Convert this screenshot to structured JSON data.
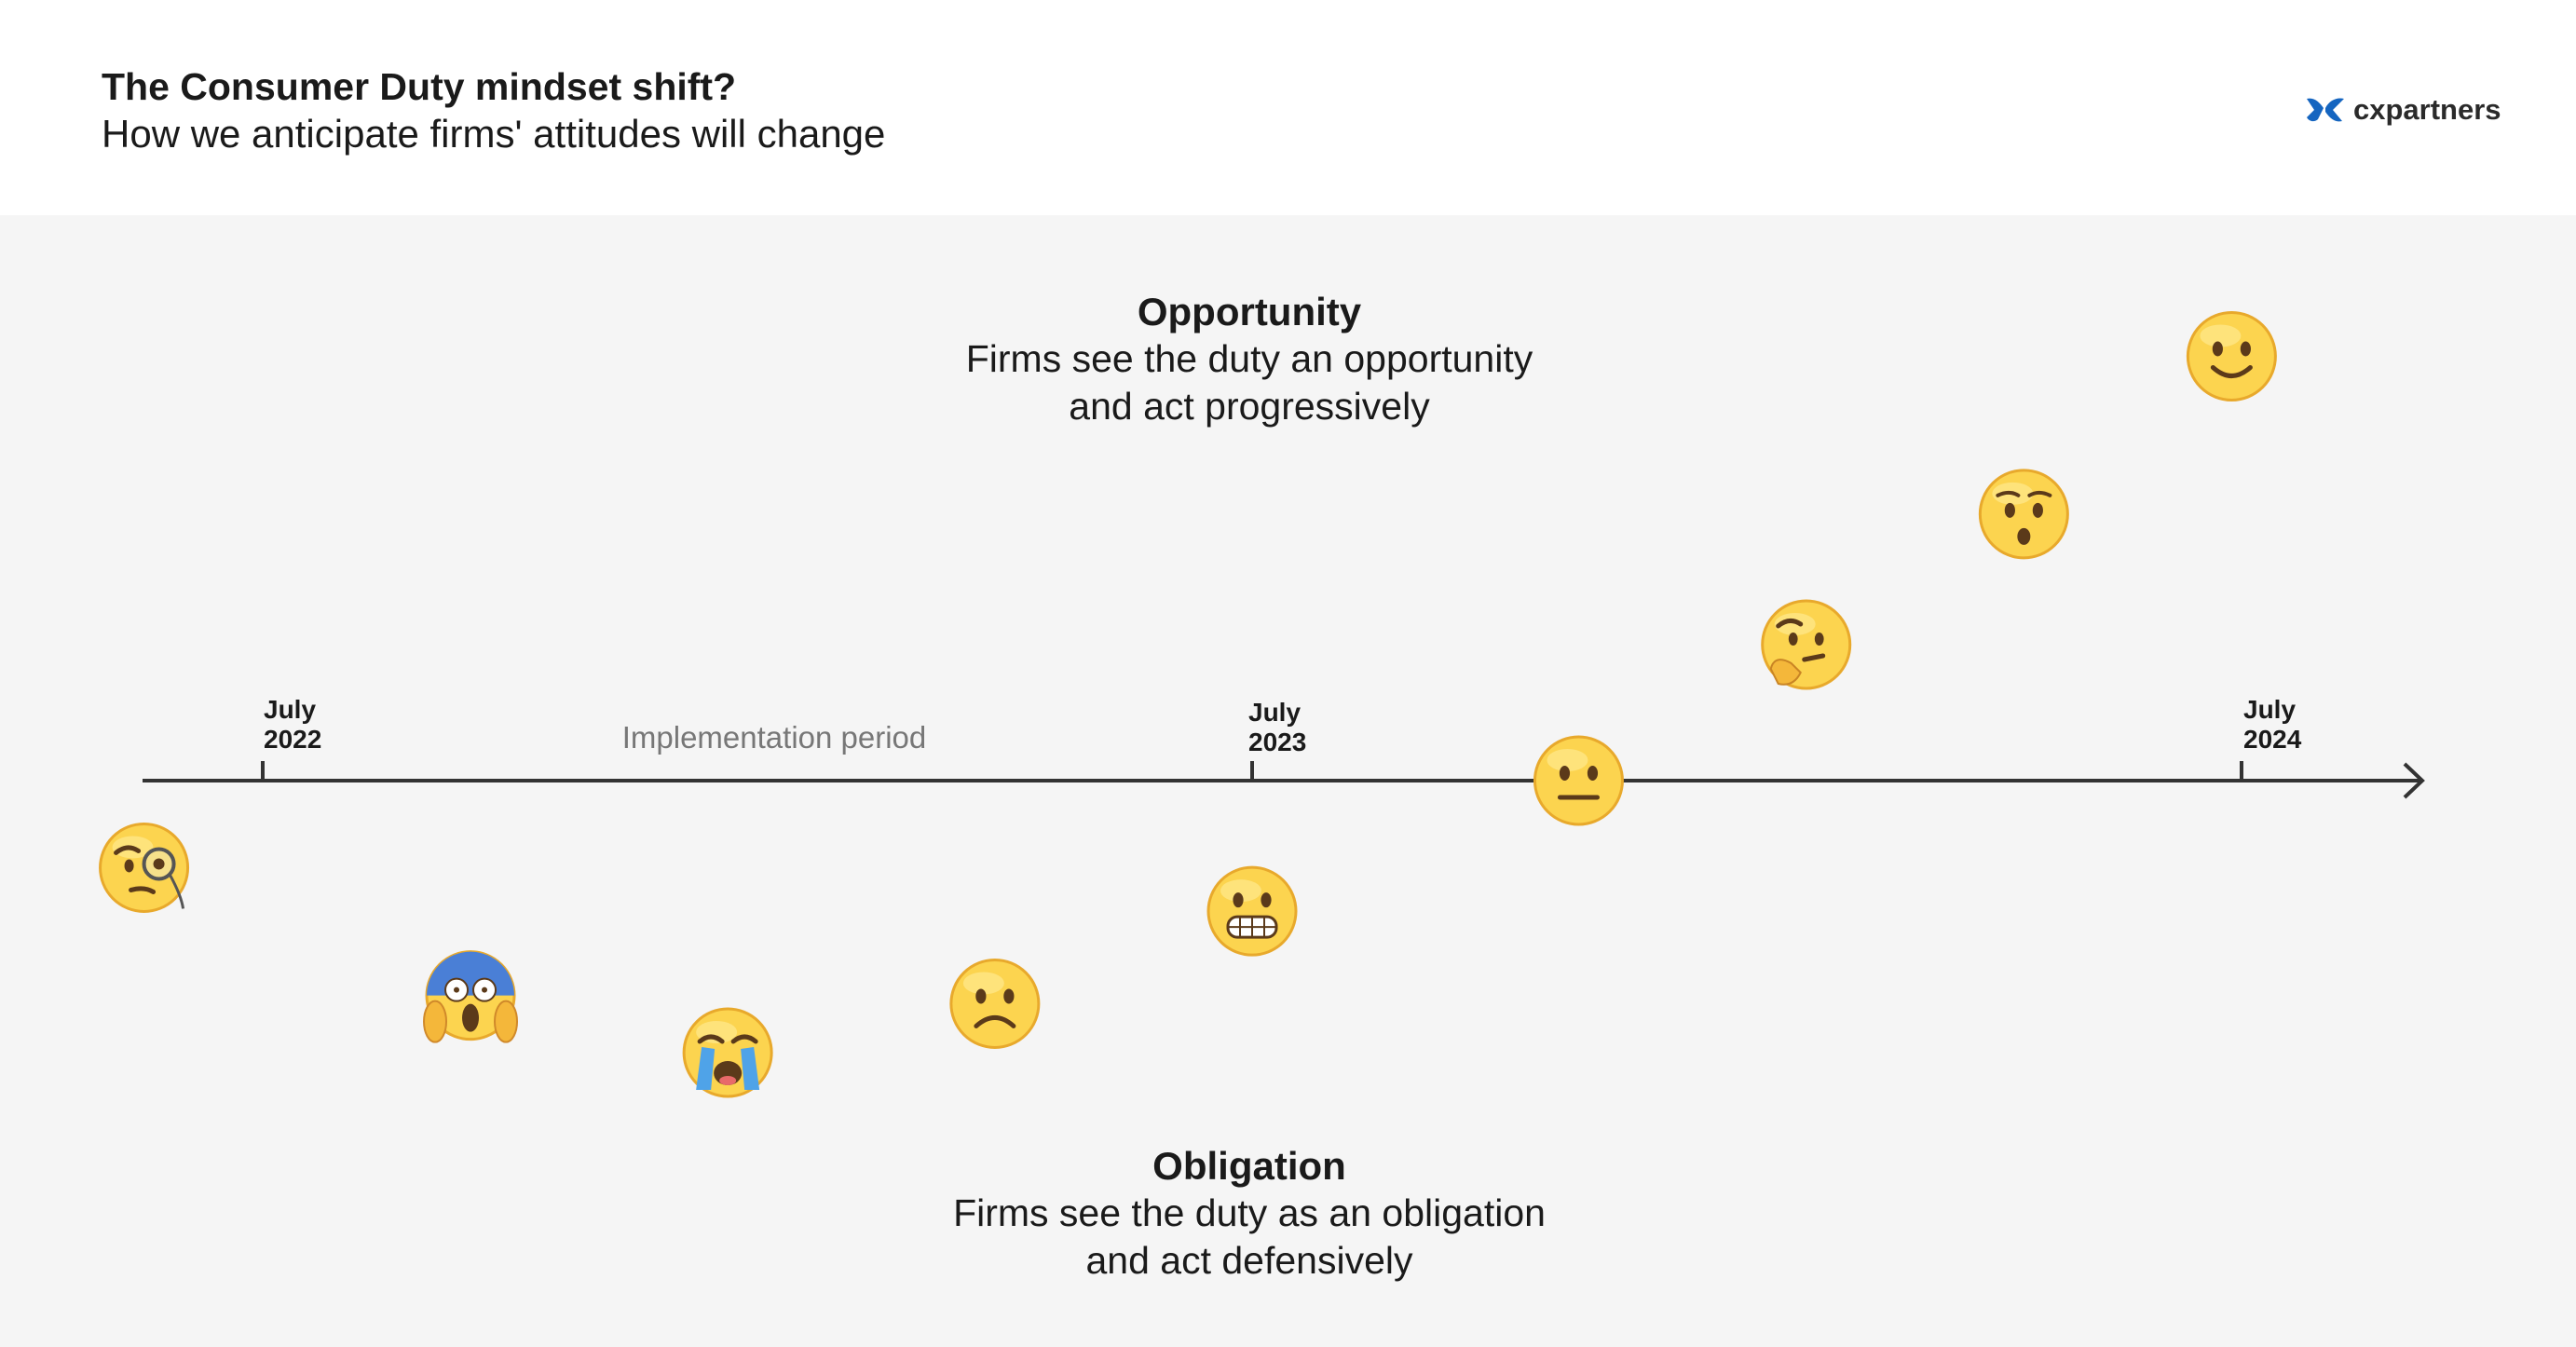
{
  "header": {
    "title": "The Consumer Duty mindset shift?",
    "subtitle": "How we anticipate firms' attitudes will change"
  },
  "logo": {
    "text": "cxpartners",
    "icon": "cx-logo-icon",
    "color": "#1565c0"
  },
  "opportunity": {
    "title": "Opportunity",
    "lines": [
      "Firms see the duty an opportunity",
      "and act progressively"
    ]
  },
  "obligation": {
    "title": "Obligation",
    "lines": [
      "Firms see the duty as an obligation",
      "and act defensively"
    ]
  },
  "timeline": {
    "period_label": "Implementation period",
    "milestones": [
      {
        "line1": "July",
        "line2": "2022"
      },
      {
        "line1": "July",
        "line2": "2023"
      },
      {
        "line1": "July",
        "line2": "2024"
      }
    ],
    "axis_color": "#333333"
  },
  "chart_data": {
    "type": "scatter",
    "x_axis": [
      "July 2022",
      "July 2023",
      "July 2024"
    ],
    "y_axis": {
      "top": "Opportunity",
      "bottom": "Obligation"
    },
    "points": [
      {
        "emoji": "face-with-monocle",
        "x": -0.12,
        "y": -0.32
      },
      {
        "emoji": "face-screaming-in-fear",
        "x": 0.21,
        "y": -0.79
      },
      {
        "emoji": "loudly-crying-face",
        "x": 0.47,
        "y": -1.0
      },
      {
        "emoji": "frowning-face",
        "x": 0.74,
        "y": -0.82
      },
      {
        "emoji": "grimacing-face",
        "x": 1.0,
        "y": -0.48
      },
      {
        "emoji": "neutral-face",
        "x": 1.33,
        "y": 0.0
      },
      {
        "emoji": "thinking-face",
        "x": 1.56,
        "y": 0.5
      },
      {
        "emoji": "hushed-face",
        "x": 1.78,
        "y": 0.98
      },
      {
        "emoji": "slightly-smiling-face",
        "x": 1.99,
        "y": 1.56
      }
    ]
  }
}
